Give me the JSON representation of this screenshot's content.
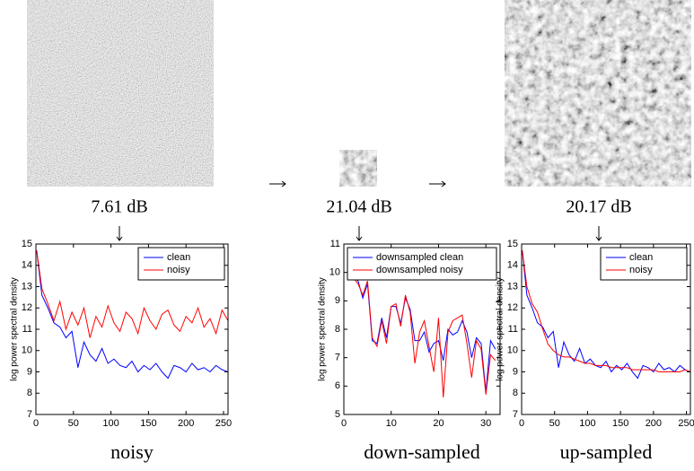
{
  "chart_data": [
    {
      "type": "line",
      "annotation": "7.61 dB",
      "xlabel": "noisy",
      "ylabel": "log power spectral density",
      "x": [
        1,
        8,
        16,
        24,
        32,
        40,
        48,
        56,
        64,
        72,
        80,
        88,
        96,
        104,
        112,
        120,
        128,
        136,
        144,
        152,
        160,
        168,
        176,
        184,
        192,
        200,
        208,
        216,
        224,
        232,
        240,
        248,
        256
      ],
      "series": [
        {
          "name": "clean",
          "color": "#0000ff",
          "values": [
            14.7,
            12.6,
            12.0,
            11.3,
            11.1,
            10.6,
            10.9,
            9.2,
            10.4,
            9.8,
            9.5,
            10.1,
            9.4,
            9.6,
            9.3,
            9.2,
            9.5,
            9.0,
            9.3,
            9.1,
            9.4,
            9.0,
            8.7,
            9.3,
            9.2,
            9.0,
            9.4,
            9.1,
            9.2,
            9.0,
            9.3,
            9.1,
            9.0
          ]
        },
        {
          "name": "noisy",
          "color": "#ff0000",
          "values": [
            14.7,
            12.9,
            12.2,
            11.4,
            12.3,
            11.0,
            11.8,
            11.2,
            12.0,
            10.6,
            11.6,
            11.1,
            12.1,
            11.3,
            10.9,
            11.8,
            11.5,
            10.8,
            12.0,
            11.4,
            11.0,
            11.7,
            11.9,
            11.2,
            10.9,
            11.6,
            11.3,
            12.0,
            11.1,
            11.5,
            10.8,
            11.9,
            11.4
          ]
        }
      ],
      "xlim": [
        0,
        256
      ],
      "xticks": [
        0,
        50,
        100,
        150,
        200,
        250
      ],
      "ylim": [
        7,
        15
      ],
      "yticks": [
        7,
        8,
        9,
        10,
        11,
        12,
        13,
        14,
        15
      ],
      "legend": "upper right"
    },
    {
      "type": "line",
      "annotation": "21.04 dB",
      "xlabel": "down-sampled",
      "ylabel": "log power spectral density",
      "x": [
        1,
        2,
        3,
        4,
        5,
        6,
        7,
        8,
        9,
        10,
        11,
        12,
        13,
        14,
        15,
        16,
        17,
        18,
        19,
        20,
        21,
        22,
        23,
        24,
        25,
        26,
        27,
        28,
        29,
        30,
        31,
        32
      ],
      "series": [
        {
          "name": "downsampled clean",
          "color": "#0000ff",
          "values": [
            10.4,
            9.9,
            9.7,
            9.1,
            9.6,
            7.6,
            7.5,
            8.4,
            7.7,
            8.8,
            8.8,
            8.2,
            9.1,
            8.7,
            7.6,
            7.6,
            7.9,
            7.2,
            7.5,
            7.6,
            6.9,
            8.0,
            7.8,
            7.9,
            8.3,
            7.9,
            7.0,
            7.7,
            7.5,
            5.8,
            7.6,
            7.3
          ]
        },
        {
          "name": "downsampled noisy",
          "color": "#ff0000",
          "values": [
            10.4,
            9.8,
            9.6,
            9.2,
            9.7,
            7.7,
            7.4,
            8.3,
            7.5,
            8.8,
            8.9,
            8.1,
            9.2,
            8.6,
            6.8,
            7.9,
            8.3,
            7.4,
            6.5,
            8.4,
            5.6,
            7.9,
            8.3,
            8.4,
            8.5,
            7.5,
            6.3,
            7.6,
            7.3,
            5.7,
            7.1,
            6.9
          ]
        }
      ],
      "xlim": [
        0,
        33
      ],
      "xticks": [
        0,
        10,
        20,
        30
      ],
      "ylim": [
        5,
        11
      ],
      "yticks": [
        5,
        6,
        7,
        8,
        9,
        10,
        11
      ],
      "legend": "upper right"
    },
    {
      "type": "line",
      "annotation": "20.17 dB",
      "xlabel": "up-sampled",
      "ylabel": "log power spectral density",
      "x": [
        1,
        8,
        16,
        24,
        32,
        40,
        48,
        56,
        64,
        72,
        80,
        88,
        96,
        104,
        112,
        120,
        128,
        136,
        144,
        152,
        160,
        168,
        176,
        184,
        192,
        200,
        208,
        216,
        224,
        232,
        240,
        248,
        256
      ],
      "series": [
        {
          "name": "clean",
          "color": "#0000ff",
          "values": [
            14.7,
            12.6,
            12.0,
            11.3,
            11.1,
            10.6,
            10.9,
            9.2,
            10.4,
            9.8,
            9.5,
            10.1,
            9.4,
            9.6,
            9.3,
            9.2,
            9.5,
            9.0,
            9.3,
            9.1,
            9.4,
            9.0,
            8.7,
            9.3,
            9.2,
            9.0,
            9.4,
            9.1,
            9.2,
            9.0,
            9.3,
            9.1,
            9.0
          ]
        },
        {
          "name": "noisy",
          "color": "#ff0000",
          "values": [
            14.7,
            13.0,
            12.2,
            11.8,
            11.0,
            10.3,
            10.0,
            9.8,
            9.7,
            9.7,
            9.6,
            9.5,
            9.4,
            9.4,
            9.3,
            9.3,
            9.3,
            9.2,
            9.2,
            9.2,
            9.2,
            9.1,
            9.1,
            9.1,
            9.1,
            9.1,
            9.0,
            9.0,
            9.0,
            9.0,
            9.0,
            9.1,
            9.0
          ]
        }
      ],
      "xlim": [
        0,
        256
      ],
      "xticks": [
        0,
        50,
        100,
        150,
        200,
        250
      ],
      "ylim": [
        7,
        15
      ],
      "yticks": [
        7,
        8,
        9,
        10,
        11,
        12,
        13,
        14,
        15
      ],
      "legend": "upper right"
    }
  ]
}
